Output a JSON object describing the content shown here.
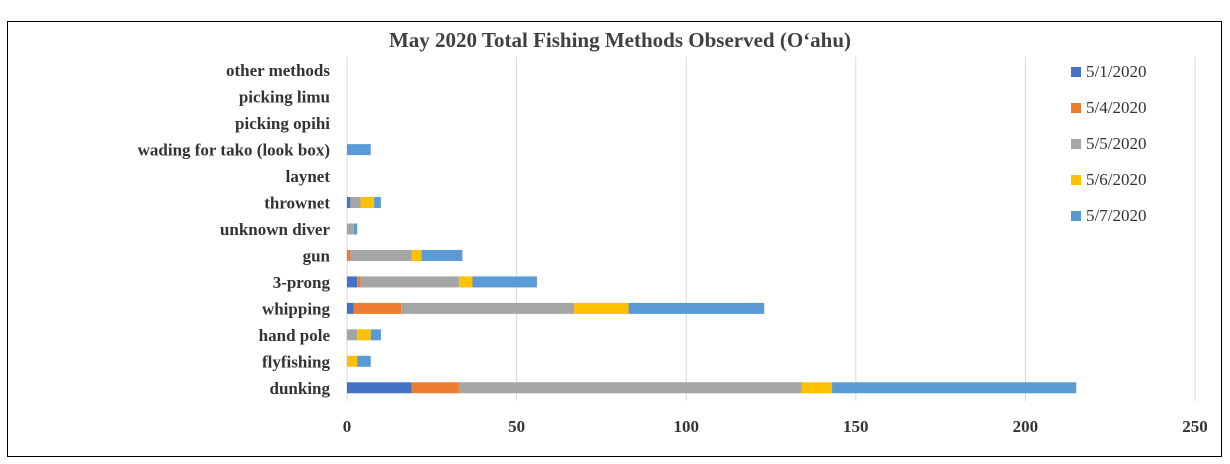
{
  "chart_data": {
    "type": "bar",
    "orientation": "horizontal",
    "stacked": true,
    "title": "May 2020 Total Fishing Methods Observed (O‘ahu)",
    "xlabel": "",
    "ylabel": "",
    "xlim": [
      0,
      250
    ],
    "xticks": [
      0,
      50,
      100,
      150,
      200,
      250
    ],
    "grid": true,
    "legend_position": "right",
    "categories": [
      "dunking",
      "flyfishing",
      "hand pole",
      "whipping",
      "3-prong",
      "gun",
      "unknown diver",
      "thrownet",
      "laynet",
      "wading for tako (look box)",
      "picking opihi",
      "picking limu",
      "other methods"
    ],
    "series": [
      {
        "name": "5/1/2020",
        "color": "#4472C4",
        "values": [
          19,
          0,
          0,
          2,
          3,
          0,
          0,
          1,
          0,
          0,
          0,
          0,
          0
        ]
      },
      {
        "name": "5/4/2020",
        "color": "#ED7D31",
        "values": [
          14,
          0,
          0,
          14,
          1,
          1,
          0,
          0,
          0,
          0,
          0,
          0,
          0
        ]
      },
      {
        "name": "5/5/2020",
        "color": "#A5A5A5",
        "values": [
          101,
          0,
          3,
          51,
          29,
          18,
          2,
          3,
          0,
          0,
          0,
          0,
          0
        ]
      },
      {
        "name": "5/6/2020",
        "color": "#FFC000",
        "values": [
          9,
          3,
          4,
          16,
          4,
          3,
          0,
          4,
          0,
          0,
          0,
          0,
          0
        ]
      },
      {
        "name": "5/7/2020",
        "color": "#5B9BD5",
        "values": [
          72,
          4,
          3,
          40,
          19,
          12,
          1,
          2,
          0,
          7,
          0,
          0,
          0
        ]
      }
    ]
  }
}
